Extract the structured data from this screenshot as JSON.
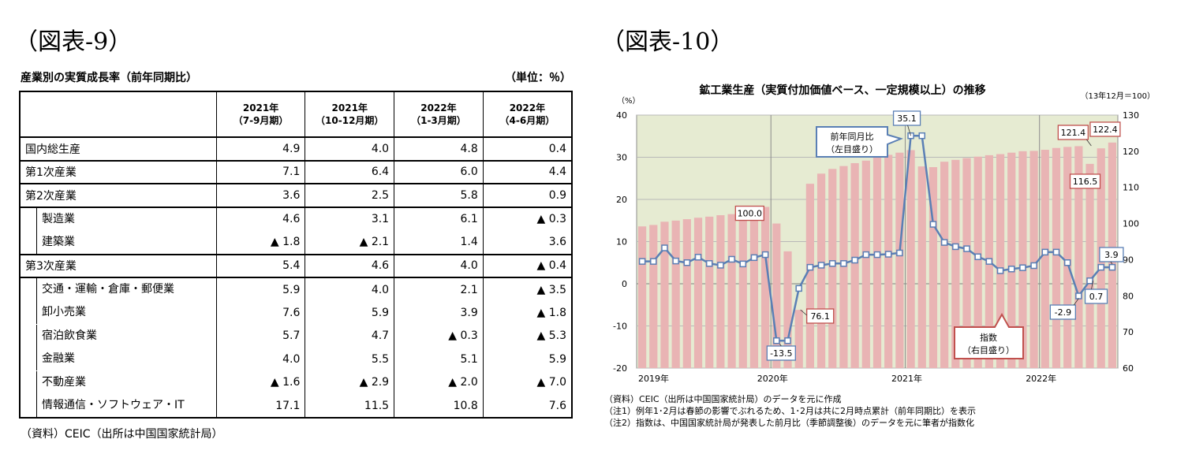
{
  "figure9": {
    "title": "（図表-9）",
    "caption": "産業別の実質成長率（前年同期比）",
    "unit": "（単位：％）",
    "source": "（資料）CEIC（出所は中国国家統計局）",
    "columns": [
      {
        "year": "2021年",
        "period": "（7-9月期）"
      },
      {
        "year": "2021年",
        "period": "（10-12月期）"
      },
      {
        "year": "2022年",
        "period": "（1-3月期）"
      },
      {
        "year": "2022年",
        "period": "（4-6月期）"
      }
    ],
    "rows": [
      {
        "label": "国内総生産",
        "values": [
          "4.9",
          "4.0",
          "4.8",
          "0.4"
        ]
      },
      {
        "label": "第1次産業",
        "values": [
          "7.1",
          "6.4",
          "6.0",
          "4.4"
        ]
      },
      {
        "label": "第2次産業",
        "values": [
          "3.6",
          "2.5",
          "5.8",
          "0.9"
        ]
      },
      {
        "label": "製造業",
        "values": [
          "4.6",
          "3.1",
          "6.1",
          "▲ 0.3"
        ]
      },
      {
        "label": "建築業",
        "values": [
          "▲ 1.8",
          "▲ 2.1",
          "1.4",
          "3.6"
        ]
      },
      {
        "label": "第3次産業",
        "values": [
          "5.4",
          "4.6",
          "4.0",
          "▲ 0.4"
        ]
      },
      {
        "label": "交通・運輸・倉庫・郵便業",
        "values": [
          "5.9",
          "4.0",
          "2.1",
          "▲ 3.5"
        ]
      },
      {
        "label": "卸小売業",
        "values": [
          "7.6",
          "5.9",
          "3.9",
          "▲ 1.8"
        ]
      },
      {
        "label": "宿泊飲食業",
        "values": [
          "5.7",
          "4.7",
          "▲ 0.3",
          "▲ 5.3"
        ]
      },
      {
        "label": "金融業",
        "values": [
          "4.0",
          "5.5",
          "5.1",
          "5.9"
        ]
      },
      {
        "label": "不動産業",
        "values": [
          "▲ 1.6",
          "▲ 2.9",
          "▲ 2.0",
          "▲ 7.0"
        ]
      },
      {
        "label": "情報通信・ソフトウェア・IT",
        "values": [
          "17.1",
          "11.5",
          "10.8",
          "7.6"
        ]
      }
    ]
  },
  "figure10": {
    "title": "（図表-10）",
    "notes": [
      "（資料）CEIC（出所は中国国家統計局）のデータを元に作成",
      "（注1）例年1･2月は春節の影響でぶれるため、1･2月は共に2月時点累計（前年同期比）を表示",
      "（注2）指数は、中国国家統計局が発表した前月比（季節調整後）のデータを元に筆者が指数化"
    ]
  },
  "chart_data": {
    "type": "bar+line",
    "title": "鉱工業生産（実質付加価値ベース、一定規模以上）の推移",
    "left_unit": "（%）",
    "right_unit": "（13年12月＝100）",
    "ylim_left": [
      -20,
      40
    ],
    "yticks_left": [
      "40",
      "30",
      "20",
      "10",
      "0",
      "-10",
      "-20"
    ],
    "ylim_right": [
      60,
      130
    ],
    "yticks_right": [
      "130",
      "120",
      "110",
      "100",
      "90",
      "80",
      "70",
      "60"
    ],
    "x_labels": [
      "2019年",
      "2020年",
      "2021年",
      "2022年"
    ],
    "x_start": "2019-01",
    "grid": true,
    "colors": {
      "bar": "#e9b4b4",
      "line": "#5a7fb5",
      "plot_bg": "#e6ebd2",
      "index_box": "#c0504d",
      "yoy_box": "#5a7fb5"
    },
    "series": [
      {
        "name": "指数（右目盛り）",
        "axis": "right",
        "values": [
          99.2,
          99.6,
          100.5,
          100.8,
          101.2,
          101.6,
          101.9,
          102.3,
          102.6,
          103.4,
          104.0,
          104.6,
          100.0,
          92.3,
          76.1,
          111.0,
          113.8,
          115.1,
          115.9,
          116.7,
          117.4,
          118.3,
          119.0,
          119.6,
          120.3,
          115.8,
          115.6,
          117.1,
          117.6,
          118.1,
          118.5,
          118.9,
          119.2,
          119.6,
          120.0,
          120.1,
          120.4,
          120.9,
          121.2,
          121.4,
          116.5,
          120.8,
          122.4
        ]
      },
      {
        "name": "前年同月比（左目盛り）",
        "axis": "left",
        "values": [
          5.3,
          5.3,
          8.5,
          5.4,
          5.0,
          6.3,
          4.8,
          4.4,
          5.8,
          4.7,
          6.2,
          6.9,
          -13.5,
          -13.5,
          -1.1,
          3.9,
          4.4,
          4.8,
          4.8,
          5.6,
          6.9,
          6.9,
          7.0,
          7.3,
          35.1,
          35.1,
          14.1,
          9.8,
          8.8,
          8.3,
          6.4,
          5.3,
          3.1,
          3.5,
          3.8,
          4.3,
          7.5,
          7.5,
          5.0,
          -2.9,
          0.7,
          3.9,
          3.9
        ]
      }
    ],
    "annotations": [
      {
        "text": "100.0",
        "series": "index"
      },
      {
        "text": "76.1",
        "series": "index"
      },
      {
        "text": "121.4",
        "series": "index"
      },
      {
        "text": "116.5",
        "series": "index"
      },
      {
        "text": "122.4",
        "series": "index"
      },
      {
        "text": "-13.5",
        "series": "yoy"
      },
      {
        "text": "35.1",
        "series": "yoy"
      },
      {
        "text": "-2.9",
        "series": "yoy"
      },
      {
        "text": "0.7",
        "series": "yoy"
      },
      {
        "text": "3.9",
        "series": "yoy"
      }
    ],
    "callouts": {
      "yoy": [
        "前年同月比",
        "（左目盛り）"
      ],
      "index": [
        "指数",
        "（右目盛り）"
      ]
    }
  }
}
